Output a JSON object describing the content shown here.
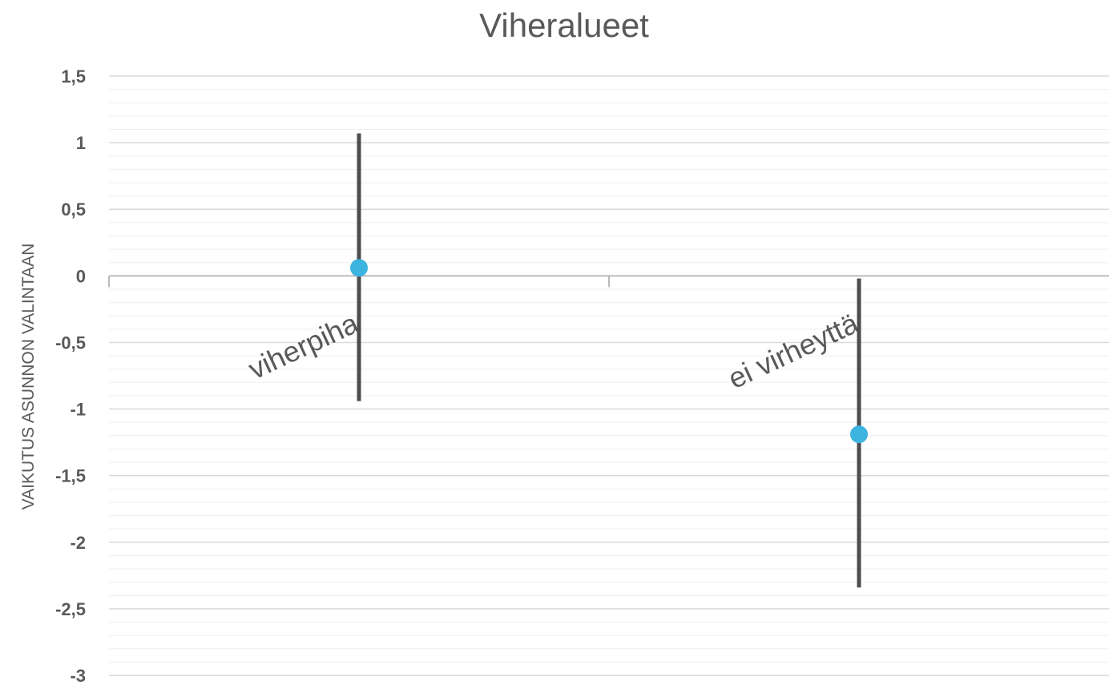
{
  "chart_data": {
    "type": "scatter",
    "title": "Viheralueet",
    "xlabel": "",
    "ylabel": "VAIKUTUS ASUNNON VALINTAAN",
    "ylim": [
      -3,
      1.5
    ],
    "y_ticks": [
      1.5,
      1,
      0.5,
      0,
      -0.5,
      -1,
      -1.5,
      -2,
      -2.5,
      -3
    ],
    "y_tick_labels": [
      "1,5",
      "1",
      "0,5",
      "0",
      "-0,5",
      "-1",
      "-1,5",
      "-2",
      "-2,5",
      "-3"
    ],
    "minor_gridlines": true,
    "categories": [
      "viherpiha",
      "ei virheyttä"
    ],
    "values": [
      0.06,
      -1.19
    ],
    "error_bars": {
      "low": [
        -0.94,
        -2.34
      ],
      "high": [
        1.07,
        -0.02
      ]
    },
    "colors": {
      "marker": "#3cb4e0",
      "error_bar": "#4d4d4d",
      "gridline_major": "#d9d9d9",
      "gridline_minor": "#efefef",
      "axis": "#a6a6a6",
      "text": "#595959"
    }
  }
}
